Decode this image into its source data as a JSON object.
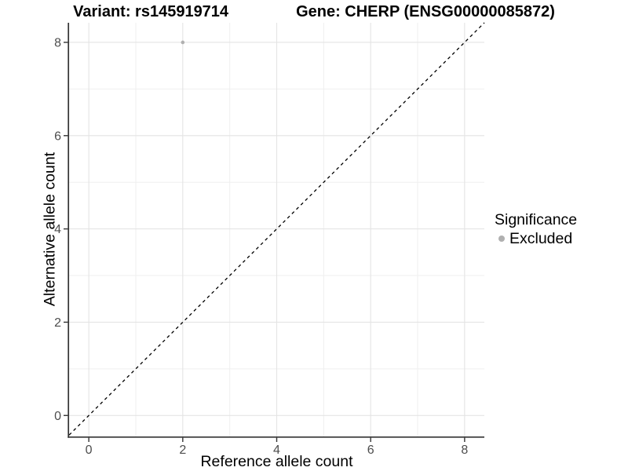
{
  "page_title": {
    "variant": "Variant: rs145919714",
    "gene": "Gene: CHERP (ENSG00000085872)"
  },
  "axes": {
    "x_label": "Reference allele count",
    "y_label": "Alternative allele count"
  },
  "legend": {
    "title": "Significance",
    "items": [
      {
        "label": "Excluded",
        "color": "#b0b0b0"
      }
    ]
  },
  "chart_data": {
    "type": "scatter",
    "title": "Variant: rs145919714 | Gene: CHERP (ENSG00000085872)",
    "xlabel": "Reference allele count",
    "ylabel": "Alternative allele count",
    "xlim": [
      -0.42,
      8.42
    ],
    "ylim": [
      -0.45,
      8.42
    ],
    "x_ticks": [
      0,
      2,
      4,
      6,
      8
    ],
    "y_ticks": [
      0,
      2,
      4,
      6,
      8
    ],
    "x_minor_gridlines": [
      1,
      3,
      5,
      7
    ],
    "y_minor_gridlines": [
      1,
      3,
      5,
      7
    ],
    "grid": "on",
    "legend_position": "right",
    "series": [
      {
        "name": "Excluded",
        "color": "#b0b0b0",
        "points": [
          {
            "x": 2,
            "y": 8
          }
        ]
      }
    ],
    "reference_line": {
      "type": "identity",
      "equation": "y = x",
      "style": "dashed",
      "color": "#000000"
    }
  },
  "colors": {
    "background": "#ffffff",
    "grid_major": "#e4e4e4",
    "grid_minor": "#efefef",
    "axis_line": "#333333",
    "tick_label": "#4d4d4d",
    "text": "#000000",
    "point": "#b0b0b0"
  }
}
